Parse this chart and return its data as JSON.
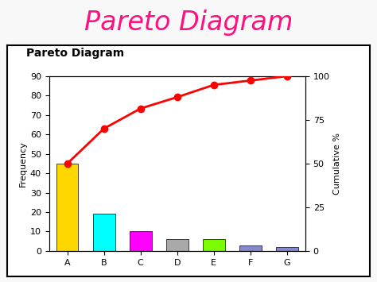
{
  "title": "Pareto Diagram",
  "chart_label": "Pareto Diagram",
  "categories": [
    "A",
    "B",
    "C",
    "D",
    "E",
    "F",
    "G"
  ],
  "frequencies": [
    45,
    19,
    10,
    6,
    6,
    3,
    2
  ],
  "bar_colors": [
    "#FFD700",
    "#00FFFF",
    "#FF00FF",
    "#A9A9A9",
    "#7CFC00",
    "#8888CC",
    "#8888CC"
  ],
  "cumulative_pct": [
    50,
    70,
    81.5,
    88,
    95,
    97.5,
    100
  ],
  "left_ylim": [
    0,
    90
  ],
  "left_yticks": [
    0,
    10,
    20,
    30,
    40,
    50,
    60,
    70,
    80,
    90
  ],
  "right_ylim": [
    0,
    100
  ],
  "right_yticks": [
    0,
    25,
    50,
    75,
    100
  ],
  "ylabel_left": "Frequency",
  "ylabel_right": "Cumulative %",
  "line_color": "#FF0000",
  "marker_color": "#FF0000",
  "marker": "o",
  "title_color": "#FF1080",
  "title_fontsize": 24,
  "chart_label_fontsize": 10,
  "plot_bg_color": "#FFFFFF",
  "outer_bg_color": "#F8F8F8",
  "fig_width": 4.74,
  "fig_height": 3.55,
  "box_bg": "#FFFFFF"
}
